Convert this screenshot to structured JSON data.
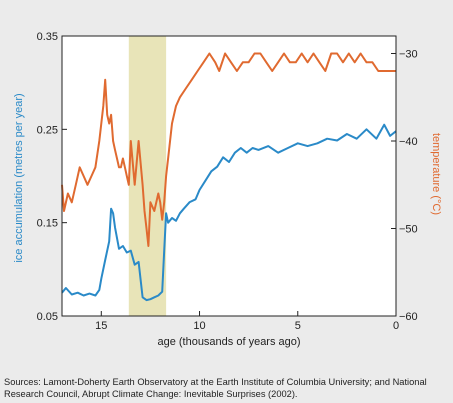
{
  "chart_data": {
    "type": "line",
    "xlabel": "age (thousands of years ago)",
    "ylabel_left": "ice accumulation (metres per year)",
    "ylabel_right": "temperature (°C)",
    "x_ticks": [
      "15",
      "10",
      "5",
      "0"
    ],
    "x_tick_values": [
      15,
      10,
      5,
      0
    ],
    "xlim": [
      17,
      0
    ],
    "xaxis_reversed": true,
    "y_left_ticks": [
      "0.35",
      "0.25",
      "0.15",
      "0.05"
    ],
    "y_left_tick_values": [
      0.35,
      0.25,
      0.15,
      0.05
    ],
    "ylim_left": [
      0.05,
      0.35
    ],
    "y_right_ticks": [
      "−30",
      "−40",
      "−50",
      "−60"
    ],
    "y_right_tick_values": [
      -30,
      -40,
      -50,
      -60
    ],
    "ylim_right": [
      -60,
      -28
    ],
    "highlight_band": {
      "x_from": 13.6,
      "x_to": 11.7,
      "color": "#e8e4b8"
    },
    "grid": false,
    "series": [
      {
        "axis": "left",
        "color": "#2a8ac8",
        "x": [
          17,
          16.8,
          16.5,
          16.2,
          15.9,
          15.6,
          15.3,
          15.1,
          15.0,
          14.8,
          14.6,
          14.5,
          14.4,
          14.3,
          14.1,
          13.9,
          13.7,
          13.5,
          13.3,
          13.1,
          12.9,
          12.7,
          12.5,
          12.3,
          12.1,
          11.9,
          11.8,
          11.7,
          11.6,
          11.4,
          11.2,
          11.0,
          10.8,
          10.5,
          10.2,
          10.0,
          9.7,
          9.4,
          9.1,
          8.8,
          8.5,
          8.2,
          7.9,
          7.6,
          7.3,
          7.0,
          6.5,
          6.0,
          5.5,
          5.0,
          4.5,
          4.0,
          3.5,
          3.0,
          2.5,
          2.0,
          1.5,
          1.0,
          0.6,
          0.3,
          0.0
        ],
        "y": [
          0.075,
          0.08,
          0.073,
          0.075,
          0.072,
          0.074,
          0.072,
          0.078,
          0.09,
          0.11,
          0.13,
          0.165,
          0.16,
          0.145,
          0.122,
          0.125,
          0.118,
          0.12,
          0.105,
          0.108,
          0.07,
          0.067,
          0.068,
          0.07,
          0.072,
          0.076,
          0.12,
          0.16,
          0.15,
          0.155,
          0.152,
          0.16,
          0.165,
          0.172,
          0.175,
          0.185,
          0.195,
          0.205,
          0.21,
          0.22,
          0.215,
          0.225,
          0.23,
          0.225,
          0.23,
          0.228,
          0.232,
          0.225,
          0.23,
          0.235,
          0.232,
          0.235,
          0.24,
          0.238,
          0.245,
          0.24,
          0.25,
          0.24,
          0.255,
          0.243,
          0.248
        ]
      },
      {
        "axis": "right",
        "color": "#e06a30",
        "x": [
          17,
          16.9,
          16.7,
          16.5,
          16.3,
          16.1,
          15.9,
          15.7,
          15.5,
          15.3,
          15.1,
          14.9,
          14.8,
          14.7,
          14.6,
          14.5,
          14.4,
          14.3,
          14.2,
          14.1,
          14.0,
          13.9,
          13.8,
          13.7,
          13.6,
          13.5,
          13.3,
          13.1,
          12.9,
          12.8,
          12.7,
          12.6,
          12.5,
          12.3,
          12.1,
          12.0,
          11.9,
          11.8,
          11.7,
          11.6,
          11.4,
          11.2,
          11.0,
          10.7,
          10.4,
          10.1,
          9.8,
          9.5,
          9.2,
          9.0,
          8.7,
          8.4,
          8.1,
          7.8,
          7.5,
          7.2,
          6.9,
          6.6,
          6.3,
          6.0,
          5.7,
          5.4,
          5.1,
          4.8,
          4.5,
          4.2,
          3.9,
          3.6,
          3.3,
          3.0,
          2.7,
          2.4,
          2.1,
          1.8,
          1.5,
          1.2,
          0.9,
          0.6,
          0.3,
          0.0
        ],
        "y": [
          -45,
          -48,
          -46,
          -47,
          -45,
          -43,
          -44,
          -45,
          -44,
          -43,
          -40,
          -36,
          -33,
          -37,
          -38,
          -37,
          -40,
          -41,
          -42,
          -43,
          -43,
          -42,
          -43,
          -44,
          -45,
          -40,
          -45,
          -40,
          -45,
          -48,
          -50,
          -52,
          -47,
          -48,
          -46,
          -47,
          -49,
          -47,
          -44,
          -42,
          -38,
          -36,
          -35,
          -34,
          -33,
          -32,
          -31,
          -30,
          -31,
          -32,
          -30,
          -31,
          -32,
          -31,
          -31,
          -30,
          -30,
          -31,
          -32,
          -31,
          -30,
          -31,
          -31,
          -30,
          -31,
          -30,
          -31,
          -32,
          -30,
          -30,
          -31,
          -30,
          -31,
          -30,
          -31,
          -31,
          -32,
          -32,
          -32,
          -32
        ]
      }
    ]
  },
  "source_text": "Sources: Lamont-Doherty Earth Observatory at the Earth Institute of Columbia University; and National Research Council, Abrupt Climate Change: Inevitable Surprises (2002).",
  "colors": {
    "background": "#ebebeb",
    "plot_background": "#ffffff",
    "ice_series": "#2a8ac8",
    "temp_series": "#e06a30",
    "band": "#e8e4b8"
  }
}
